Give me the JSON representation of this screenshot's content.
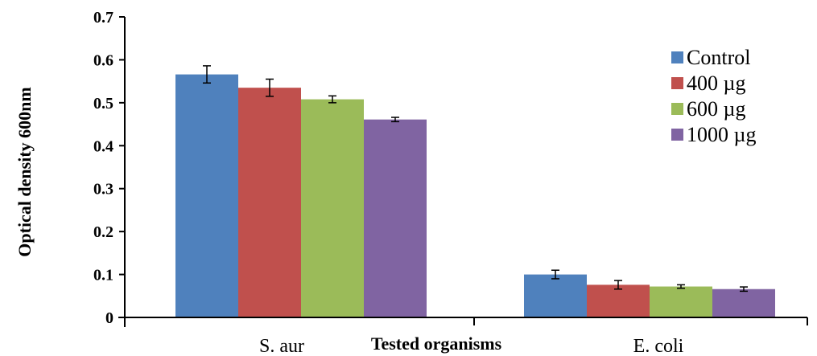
{
  "chart_data": {
    "type": "bar",
    "categories": [
      "S. aur",
      "E. coli"
    ],
    "xlabel": "Tested organisms",
    "ylabel": "Optical density 600nm",
    "ylim": [
      0,
      0.7
    ],
    "yticks": [
      "0",
      "0.1",
      "0.2",
      "0.3",
      "0.4",
      "0.5",
      "0.6",
      "0.7"
    ],
    "grid": false,
    "legend_position": "top-right",
    "series": [
      {
        "name": "Control",
        "color": "#4f81bd",
        "values": [
          0.566,
          0.1
        ],
        "errors": [
          0.02,
          0.01
        ]
      },
      {
        "name": "400 µg",
        "color": "#c0504d",
        "values": [
          0.535,
          0.076
        ],
        "errors": [
          0.02,
          0.01
        ]
      },
      {
        "name": "600 µg",
        "color": "#9bbb59",
        "values": [
          0.508,
          0.072
        ],
        "errors": [
          0.008,
          0.004
        ]
      },
      {
        "name": "1000 µg",
        "color": "#8064a2",
        "values": [
          0.461,
          0.066
        ],
        "errors": [
          0.005,
          0.005
        ]
      }
    ]
  }
}
